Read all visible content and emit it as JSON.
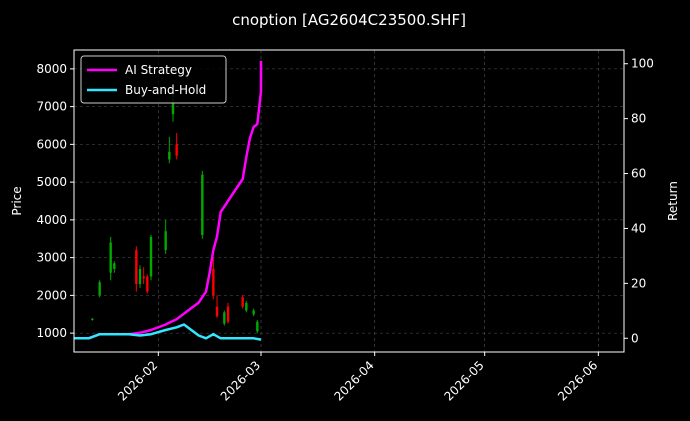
{
  "chart_data": {
    "type": "line",
    "title": "cnoption [AG2604C23500.SHF]",
    "ylabel_left": "Price",
    "ylabel_right": "Return",
    "xlim": [
      "2026-01-09",
      "2026-06-08"
    ],
    "ylim_left": [
      500,
      8500
    ],
    "ylim_right": [
      -5,
      105
    ],
    "x_ticks": [
      "2026-02",
      "2026-03",
      "2026-04",
      "2026-05",
      "2026-06"
    ],
    "y_ticks_left": [
      1000,
      2000,
      3000,
      4000,
      5000,
      6000,
      7000,
      8000
    ],
    "y_ticks_right": [
      0,
      20,
      40,
      60,
      80,
      100
    ],
    "grid": true,
    "legend_position": "top-left",
    "colors": {
      "background": "#000000",
      "up": "#00aa00",
      "down": "#ff0000",
      "strategy": "#ff00ff",
      "buyhold": "#33e6ff",
      "grid": "#555555",
      "axis": "#ffffff"
    },
    "candles": [
      {
        "d": "2026-01-14",
        "o": 1350,
        "h": 1400,
        "l": 1330,
        "c": 1380
      },
      {
        "d": "2026-01-16",
        "o": 2000,
        "h": 2400,
        "l": 1950,
        "c": 2350
      },
      {
        "d": "2026-01-19",
        "o": 2600,
        "h": 3550,
        "l": 2400,
        "c": 3400
      },
      {
        "d": "2026-01-20",
        "o": 2700,
        "h": 2900,
        "l": 2600,
        "c": 2850
      },
      {
        "d": "2026-01-26",
        "o": 3200,
        "h": 3300,
        "l": 2100,
        "c": 2300
      },
      {
        "d": "2026-01-27",
        "o": 2300,
        "h": 2800,
        "l": 2200,
        "c": 2700
      },
      {
        "d": "2026-01-28",
        "o": 2500,
        "h": 2750,
        "l": 2300,
        "c": 2450
      },
      {
        "d": "2026-01-29",
        "o": 2500,
        "h": 2550,
        "l": 2050,
        "c": 2100
      },
      {
        "d": "2026-01-30",
        "o": 2500,
        "h": 3600,
        "l": 2400,
        "c": 3550
      },
      {
        "d": "2026-02-03",
        "o": 3200,
        "h": 4000,
        "l": 3100,
        "c": 3700
      },
      {
        "d": "2026-02-04",
        "o": 5600,
        "h": 6200,
        "l": 5500,
        "c": 5800
      },
      {
        "d": "2026-02-05",
        "o": 6800,
        "h": 7600,
        "l": 6600,
        "c": 7100
      },
      {
        "d": "2026-02-06",
        "o": 6000,
        "h": 6300,
        "l": 5600,
        "c": 5700
      },
      {
        "d": "2026-02-13",
        "o": 3600,
        "h": 5300,
        "l": 3500,
        "c": 5200
      },
      {
        "d": "2026-02-16",
        "o": 2700,
        "h": 3000,
        "l": 1900,
        "c": 2000
      },
      {
        "d": "2026-02-17",
        "o": 1700,
        "h": 2000,
        "l": 1400,
        "c": 1450
      },
      {
        "d": "2026-02-19",
        "o": 1250,
        "h": 1600,
        "l": 1200,
        "c": 1550
      },
      {
        "d": "2026-02-20",
        "o": 1700,
        "h": 1800,
        "l": 1250,
        "c": 1300
      },
      {
        "d": "2026-02-24",
        "o": 1950,
        "h": 2000,
        "l": 1650,
        "c": 1700
      },
      {
        "d": "2026-02-25",
        "o": 1600,
        "h": 1850,
        "l": 1550,
        "c": 1800
      },
      {
        "d": "2026-02-27",
        "o": 1500,
        "h": 1650,
        "l": 1450,
        "c": 1600
      },
      {
        "d": "2026-02-28",
        "o": 1050,
        "h": 1350,
        "l": 1000,
        "c": 1300
      }
    ],
    "series": [
      {
        "name": "AI Strategy",
        "axis": "right",
        "points": [
          [
            "2026-01-09",
            0
          ],
          [
            "2026-01-13",
            0
          ],
          [
            "2026-01-16",
            1.5
          ],
          [
            "2026-01-20",
            1.5
          ],
          [
            "2026-01-24",
            1.5
          ],
          [
            "2026-01-27",
            2
          ],
          [
            "2026-01-30",
            3
          ],
          [
            "2026-02-03",
            5
          ],
          [
            "2026-02-06",
            7
          ],
          [
            "2026-02-08",
            9
          ],
          [
            "2026-02-10",
            11
          ],
          [
            "2026-02-12",
            13
          ],
          [
            "2026-02-14",
            17
          ],
          [
            "2026-02-15",
            24
          ],
          [
            "2026-02-16",
            32
          ],
          [
            "2026-02-17",
            37
          ],
          [
            "2026-02-18",
            46
          ],
          [
            "2026-02-20",
            50
          ],
          [
            "2026-02-22",
            54
          ],
          [
            "2026-02-24",
            58
          ],
          [
            "2026-02-25",
            66
          ],
          [
            "2026-02-26",
            73
          ],
          [
            "2026-02-27",
            77
          ],
          [
            "2026-02-28",
            78
          ],
          [
            "2026-03-01",
            90
          ],
          [
            "2026-03-01",
            101
          ]
        ]
      },
      {
        "name": "Buy-and-Hold",
        "axis": "right",
        "points": [
          [
            "2026-01-09",
            0
          ],
          [
            "2026-01-13",
            0
          ],
          [
            "2026-01-16",
            1.5
          ],
          [
            "2026-01-20",
            1.5
          ],
          [
            "2026-01-24",
            1.5
          ],
          [
            "2026-01-27",
            1
          ],
          [
            "2026-01-30",
            1.5
          ],
          [
            "2026-02-03",
            3
          ],
          [
            "2026-02-06",
            4
          ],
          [
            "2026-02-08",
            5
          ],
          [
            "2026-02-10",
            3
          ],
          [
            "2026-02-12",
            1
          ],
          [
            "2026-02-14",
            0
          ],
          [
            "2026-02-16",
            1.5
          ],
          [
            "2026-02-18",
            0
          ],
          [
            "2026-02-22",
            0
          ],
          [
            "2026-02-25",
            0
          ],
          [
            "2026-02-27",
            0
          ],
          [
            "2026-03-01",
            -0.5
          ]
        ]
      }
    ]
  }
}
